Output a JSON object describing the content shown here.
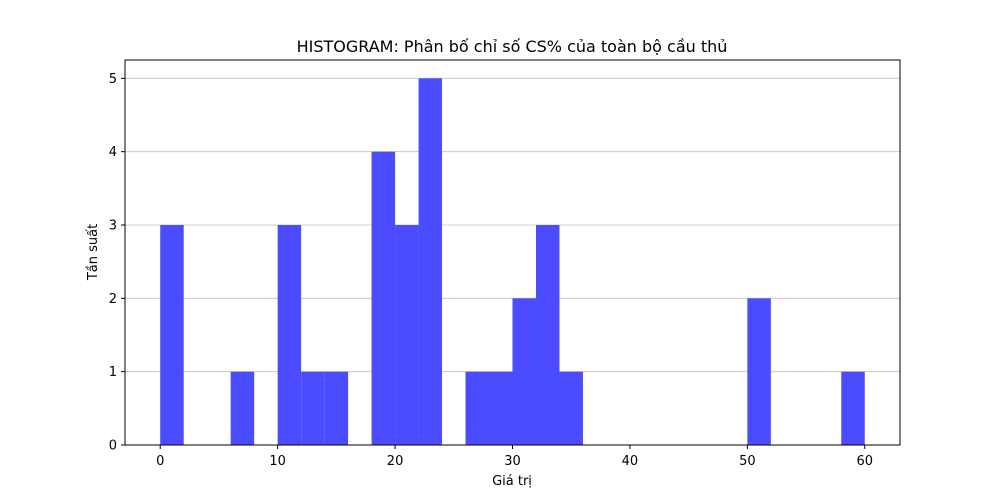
{
  "chart_data": {
    "type": "bar",
    "title": "HISTOGRAM: Phân bố chỉ số CS% của toàn bộ cầu thủ",
    "xlabel": "Giá trị",
    "ylabel": "Tần suất",
    "bin_width": 2,
    "bins": [
      {
        "start": 0,
        "end": 2,
        "count": 3
      },
      {
        "start": 6,
        "end": 8,
        "count": 1
      },
      {
        "start": 10,
        "end": 12,
        "count": 3
      },
      {
        "start": 12,
        "end": 14,
        "count": 1
      },
      {
        "start": 14,
        "end": 16,
        "count": 1
      },
      {
        "start": 18,
        "end": 20,
        "count": 4
      },
      {
        "start": 20,
        "end": 22,
        "count": 3
      },
      {
        "start": 22,
        "end": 24,
        "count": 5
      },
      {
        "start": 26,
        "end": 28,
        "count": 1
      },
      {
        "start": 28,
        "end": 30,
        "count": 1
      },
      {
        "start": 30,
        "end": 32,
        "count": 2
      },
      {
        "start": 32,
        "end": 34,
        "count": 3
      },
      {
        "start": 34,
        "end": 36,
        "count": 1
      },
      {
        "start": 50,
        "end": 52,
        "count": 2
      },
      {
        "start": 58,
        "end": 60,
        "count": 1
      }
    ],
    "xlim": [
      -3,
      63
    ],
    "ylim": [
      0,
      5.25
    ],
    "xticks": [
      0,
      10,
      20,
      30,
      40,
      50,
      60
    ],
    "yticks": [
      0,
      1,
      2,
      3,
      4,
      5
    ],
    "grid": "y",
    "bar_color": "#4b4bff"
  }
}
